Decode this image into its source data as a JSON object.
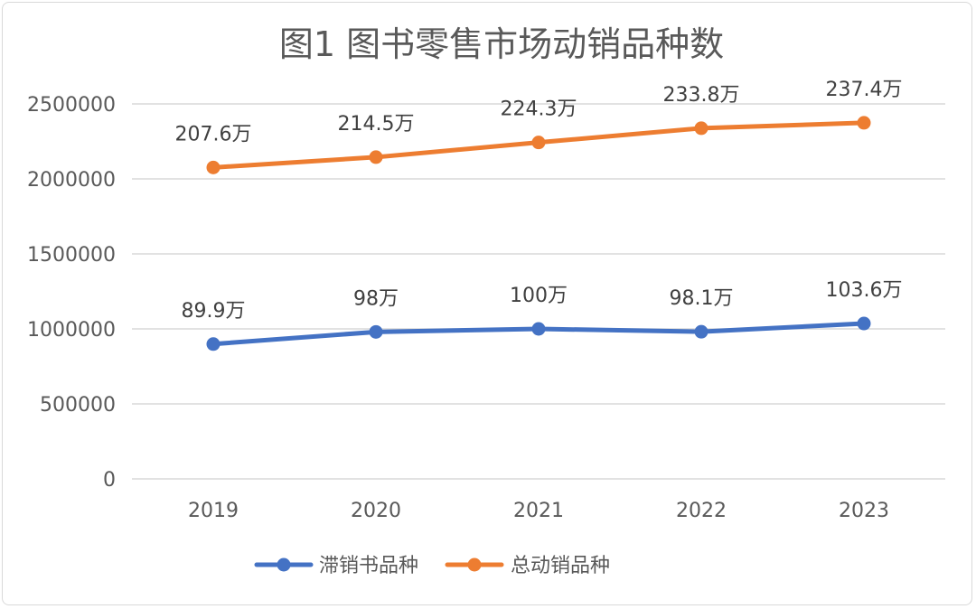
{
  "chart_data": {
    "type": "line",
    "title": "图1  图书零售市场动销品种数",
    "xlabel": "",
    "ylabel": "",
    "ylim": [
      0,
      2500000
    ],
    "yticks": [
      0,
      500000,
      1000000,
      1500000,
      2000000,
      2500000
    ],
    "ytick_labels": [
      "0",
      "500000",
      "1000000",
      "1500000",
      "2000000",
      "2500000"
    ],
    "grid": true,
    "legend_position": "bottom",
    "categories": [
      "2019",
      "2020",
      "2021",
      "2022",
      "2023"
    ],
    "series": [
      {
        "name": "滞销书品种",
        "color": "#4472c4",
        "values": [
          899000,
          980000,
          1000000,
          981000,
          1036000
        ],
        "labels": [
          "89.9万",
          "98万",
          "100万",
          "98.1万",
          "103.6万"
        ]
      },
      {
        "name": "总动销品种",
        "color": "#ed7d31",
        "values": [
          2076000,
          2145000,
          2243000,
          2338000,
          2374000
        ],
        "labels": [
          "207.6万",
          "214.5万",
          "224.3万",
          "233.8万",
          "237.4万"
        ]
      }
    ]
  }
}
